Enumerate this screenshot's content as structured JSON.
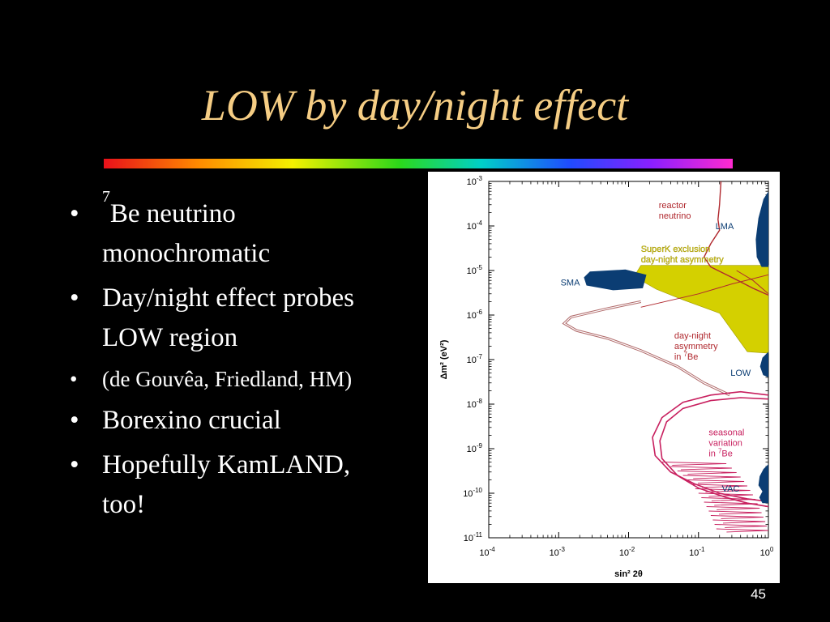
{
  "slide": {
    "title": "LOW by day/night effect",
    "bullets": [
      {
        "sup": "7",
        "text": "Be neutrino monochromatic",
        "size": "large"
      },
      {
        "sup": "",
        "text": "Day/night effect probes LOW region",
        "size": "large"
      },
      {
        "sup": "",
        "text": "(de Gouvêa, Friedland, HM)",
        "size": "small"
      },
      {
        "sup": "",
        "text": "Borexino crucial",
        "size": "large"
      },
      {
        "sup": "",
        "text": "Hopefully KamLAND, too!",
        "size": "large"
      }
    ],
    "slide_number": "45"
  },
  "chart_data": {
    "type": "region-plot",
    "xlabel": "sin² 2θ",
    "ylabel": "Δm² (eV²)",
    "x_scale": "log",
    "y_scale": "log",
    "xlim": [
      0.0001,
      1
    ],
    "ylim": [
      1e-11,
      0.001
    ],
    "x_tick_exps": [
      -4,
      -3,
      -2,
      -1,
      0
    ],
    "y_tick_exps": [
      -3,
      -4,
      -5,
      -6,
      -7,
      -8,
      -9,
      -10,
      -11
    ],
    "colors": {
      "solutions": "#0b3d73",
      "superk": "#d4d000",
      "reactor": "#b0282e",
      "daynight": "#b06a6a",
      "seasonal": "#c8205f"
    },
    "regions": [
      {
        "label": "LMA",
        "x": [
          0.63,
          1
        ],
        "y": [
          1.2e-05,
          0.0006
        ]
      },
      {
        "label": "SMA",
        "x": [
          0.0025,
          0.018
        ],
        "y": [
          3.5e-06,
          1e-05
        ]
      },
      {
        "label": "LOW",
        "x": [
          0.75,
          1
        ],
        "y": [
          4e-08,
          1.5e-07
        ]
      },
      {
        "label": "VAC",
        "x": [
          0.7,
          1
        ],
        "y": [
          6e-11,
          5e-10
        ]
      }
    ],
    "annotations": [
      {
        "label_lines": [
          "reactor",
          "neutrino"
        ],
        "x": 0.027,
        "y": 0.00025,
        "color": "#b0282e"
      },
      {
        "label_lines": [
          "SuperK exclusion",
          "day-night asymmetry"
        ],
        "x": 0.015,
        "y": 2.6e-05,
        "color": "#d4d000"
      },
      {
        "label_lines": [
          "day-night",
          "asymmetry",
          "in 7Be"
        ],
        "x": 0.045,
        "y": 3e-07,
        "color": "#b0282e"
      },
      {
        "label_lines": [
          "seasonal",
          "variation",
          "in 7Be"
        ],
        "x": 0.14,
        "y": 2e-09,
        "color": "#c8205f"
      }
    ]
  }
}
